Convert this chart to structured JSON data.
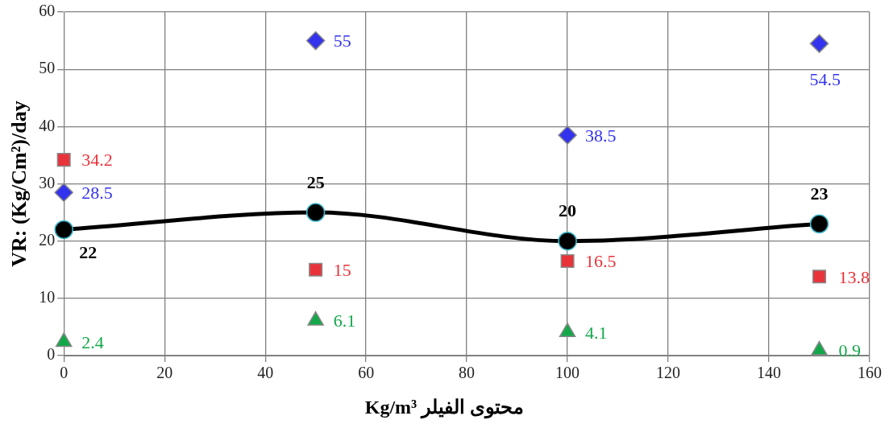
{
  "chart_data": {
    "type": "scatter",
    "xlabel": "محتوى الفيلر Kg/m³",
    "ylabel": "VR: (Kg/Cm²)/day",
    "x": [
      0,
      50,
      100,
      150
    ],
    "series": [
      {
        "marker": "diamond",
        "color": "#3333ee",
        "values": [
          28.5,
          55,
          38.5,
          54.5
        ]
      },
      {
        "marker": "square",
        "color": "#e8333a",
        "values": [
          34.2,
          15,
          16.5,
          13.8
        ]
      },
      {
        "marker": "triangle",
        "color": "#12a84a",
        "values": [
          2.4,
          6.1,
          4.1,
          0.9
        ]
      },
      {
        "type": "line",
        "marker": "circle",
        "color": "#000000",
        "line_style": "solid",
        "values": [
          22,
          25,
          20,
          23
        ]
      }
    ],
    "xlim": [
      0,
      160
    ],
    "xticks": [
      0,
      20,
      40,
      60,
      80,
      100,
      120,
      140,
      160
    ],
    "ylim": [
      0,
      60
    ],
    "yticks": [
      0,
      10,
      20,
      30,
      40,
      50,
      60
    ],
    "grid": true,
    "data_labels": true,
    "legend": false
  }
}
